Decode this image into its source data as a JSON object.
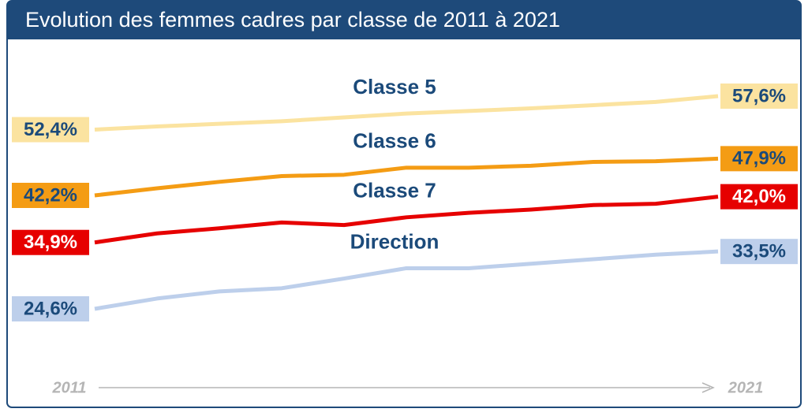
{
  "chart_data": {
    "type": "line",
    "title": "Evolution des femmes cadres par classe de 2011 à 2021",
    "x": [
      2011,
      2012,
      2013,
      2014,
      2015,
      2016,
      2017,
      2018,
      2019,
      2020,
      2021
    ],
    "xlim": [
      2011,
      2021
    ],
    "xticks": [
      2011,
      2021
    ],
    "series": [
      {
        "name": "Classe 5",
        "color": "#fbe3a0",
        "label_color": "#1b4a7a",
        "values": [
          52.4,
          52.9,
          53.3,
          53.7,
          54.3,
          54.9,
          55.3,
          55.7,
          56.2,
          56.7,
          57.6
        ],
        "value_labels": [
          "52,4%",
          null,
          null,
          null,
          null,
          null,
          null,
          null,
          null,
          null,
          "57,6%"
        ]
      },
      {
        "name": "Classe 6",
        "color": "#f49c14",
        "label_color": "#1b4a7a",
        "values": [
          42.2,
          43.3,
          44.3,
          45.2,
          45.4,
          46.5,
          46.5,
          46.8,
          47.4,
          47.5,
          47.9
        ],
        "value_labels": [
          "42,2%",
          null,
          null,
          null,
          null,
          null,
          null,
          null,
          null,
          null,
          "47,9%"
        ]
      },
      {
        "name": "Classe 7",
        "color": "#e60000",
        "label_color": "#ffffff",
        "values": [
          34.9,
          36.3,
          37.1,
          38.0,
          37.6,
          38.8,
          39.5,
          40.0,
          40.7,
          40.9,
          42.0
        ],
        "value_labels": [
          "34,9%",
          null,
          null,
          null,
          null,
          null,
          null,
          null,
          null,
          null,
          "42,0%"
        ]
      },
      {
        "name": "Direction",
        "color": "#bdcfeb",
        "label_color": "#1b4a7a",
        "values": [
          24.6,
          26.2,
          27.3,
          27.8,
          29.3,
          30.9,
          30.9,
          31.6,
          32.3,
          33.0,
          33.5
        ],
        "value_labels": [
          "24,6%",
          null,
          null,
          null,
          null,
          null,
          null,
          null,
          null,
          null,
          "33,5%"
        ]
      }
    ]
  }
}
